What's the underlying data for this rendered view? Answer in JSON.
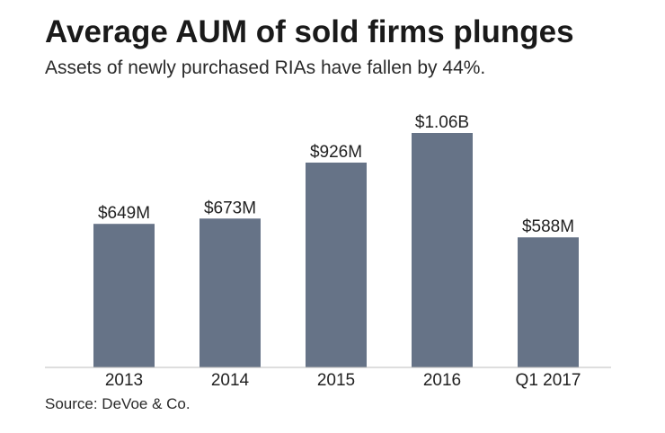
{
  "title": "Average AUM of sold firms plunges",
  "subtitle": "Assets of newly purchased RIAs have fallen by 44%.",
  "source": "Source: DeVoe & Co.",
  "colors": {
    "bar": "#667387",
    "axis": "#bdbdbd",
    "text": "#222222"
  },
  "chart_data": {
    "type": "bar",
    "categories": [
      "2013",
      "2014",
      "2015",
      "2016",
      "Q1 2017"
    ],
    "values": [
      649,
      673,
      926,
      1060,
      588
    ],
    "value_unit": "$M",
    "data_labels": [
      "$649M",
      "$673M",
      "$926M",
      "$1.06B",
      "$588M"
    ],
    "title": "Average AUM of sold firms plunges",
    "subtitle": "Assets of newly purchased RIAs have fallen by 44%.",
    "xlabel": "",
    "ylabel": "",
    "ylim": [
      0,
      1060
    ],
    "grid": false,
    "legend": "none"
  }
}
